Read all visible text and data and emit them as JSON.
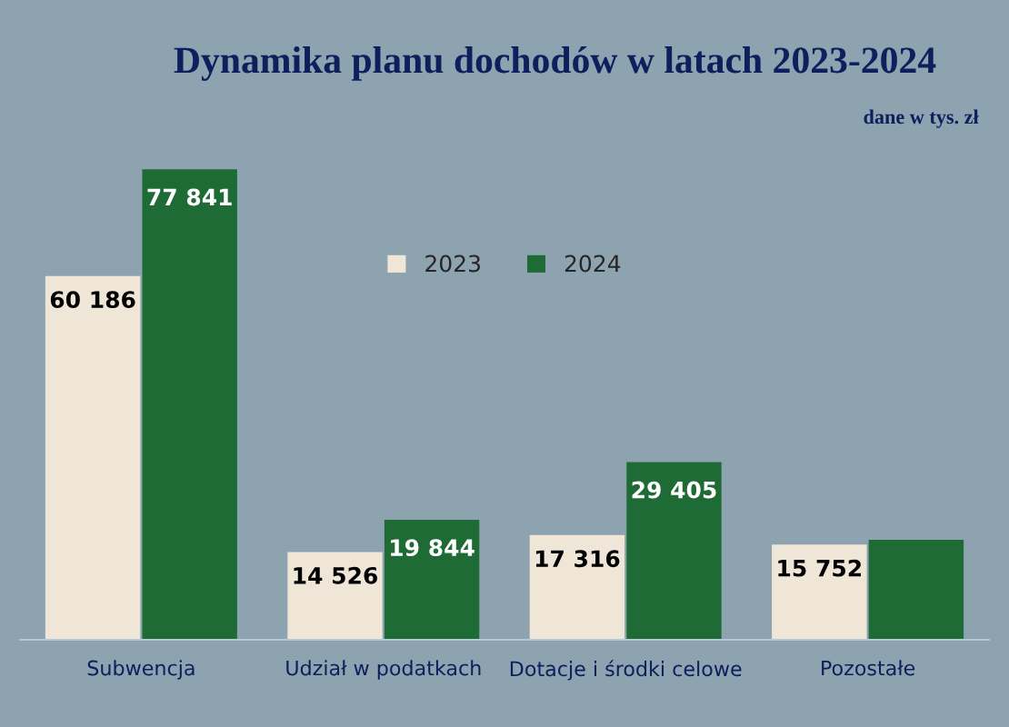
{
  "chart_data": {
    "type": "bar",
    "title": "Dynamika planu dochodów w latach 2023-2024",
    "subtitle": "dane w tys. zł",
    "categories": [
      "Subwencja",
      "Udział w podatkach",
      "Dotacje i środki celowe",
      "Pozostałe"
    ],
    "series": [
      {
        "name": "2023",
        "color": "#efe6d8",
        "values": [
          60186,
          14526,
          17316,
          15752
        ],
        "value_labels": [
          "60 186",
          "14 526",
          "17 316",
          "15 752"
        ]
      },
      {
        "name": "2024",
        "color": "#1f6b35",
        "values": [
          77841,
          19844,
          29405,
          16550
        ],
        "value_labels": [
          "77 841",
          "19 844",
          "29 405",
          null
        ]
      }
    ],
    "legend": "top",
    "grid": false
  }
}
